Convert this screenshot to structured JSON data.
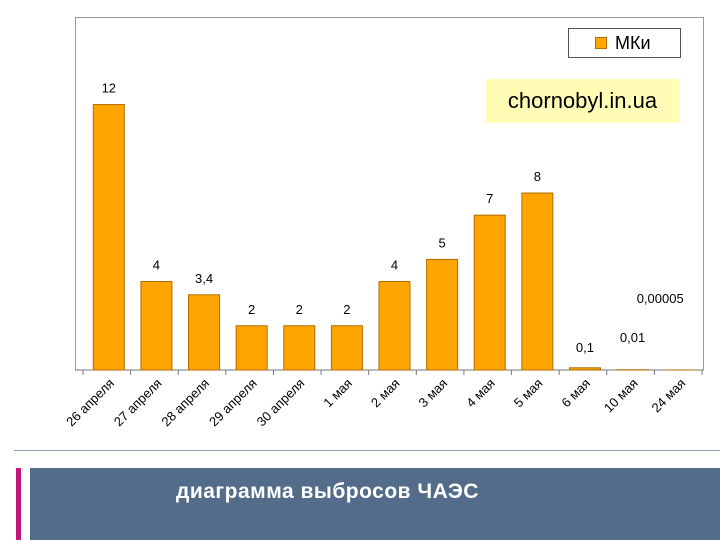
{
  "chart_data": {
    "type": "bar",
    "categories": [
      "26 апреля",
      "27 апреля",
      "28 апреля",
      "29 апреля",
      "30 апреля",
      "1 мая",
      "2 мая",
      "3 мая",
      "4 мая",
      "5 мая",
      "6 мая",
      "10 мая",
      "24 мая"
    ],
    "values": [
      12,
      4,
      3.4,
      2,
      2,
      2,
      4,
      5,
      7,
      8,
      0.1,
      0.01,
      5e-05
    ],
    "data_labels": [
      "12",
      "4",
      "3,4",
      "2",
      "2",
      "2",
      "4",
      "5",
      "7",
      "8",
      "0,1",
      "0,01",
      "0,00005"
    ],
    "series": [
      {
        "name": "МКи",
        "values": [
          12,
          4,
          3.4,
          2,
          2,
          2,
          4,
          5,
          7,
          8,
          0.1,
          0.01,
          5e-05
        ]
      }
    ],
    "ylim": [
      0,
      15
    ],
    "grid": false,
    "legend": "top-right",
    "bar_color": "#FFA500",
    "bar_edge_color": "#B36B00"
  },
  "legend": {
    "label": "МКи"
  },
  "watermark": "chornobyl.in.ua",
  "footer": {
    "title": "диаграмма выбросов ЧАЭС"
  },
  "colors": {
    "footer_bar": "#526C8A",
    "accent": "#C0147A",
    "watermark_bg": "#FFFDB5"
  }
}
